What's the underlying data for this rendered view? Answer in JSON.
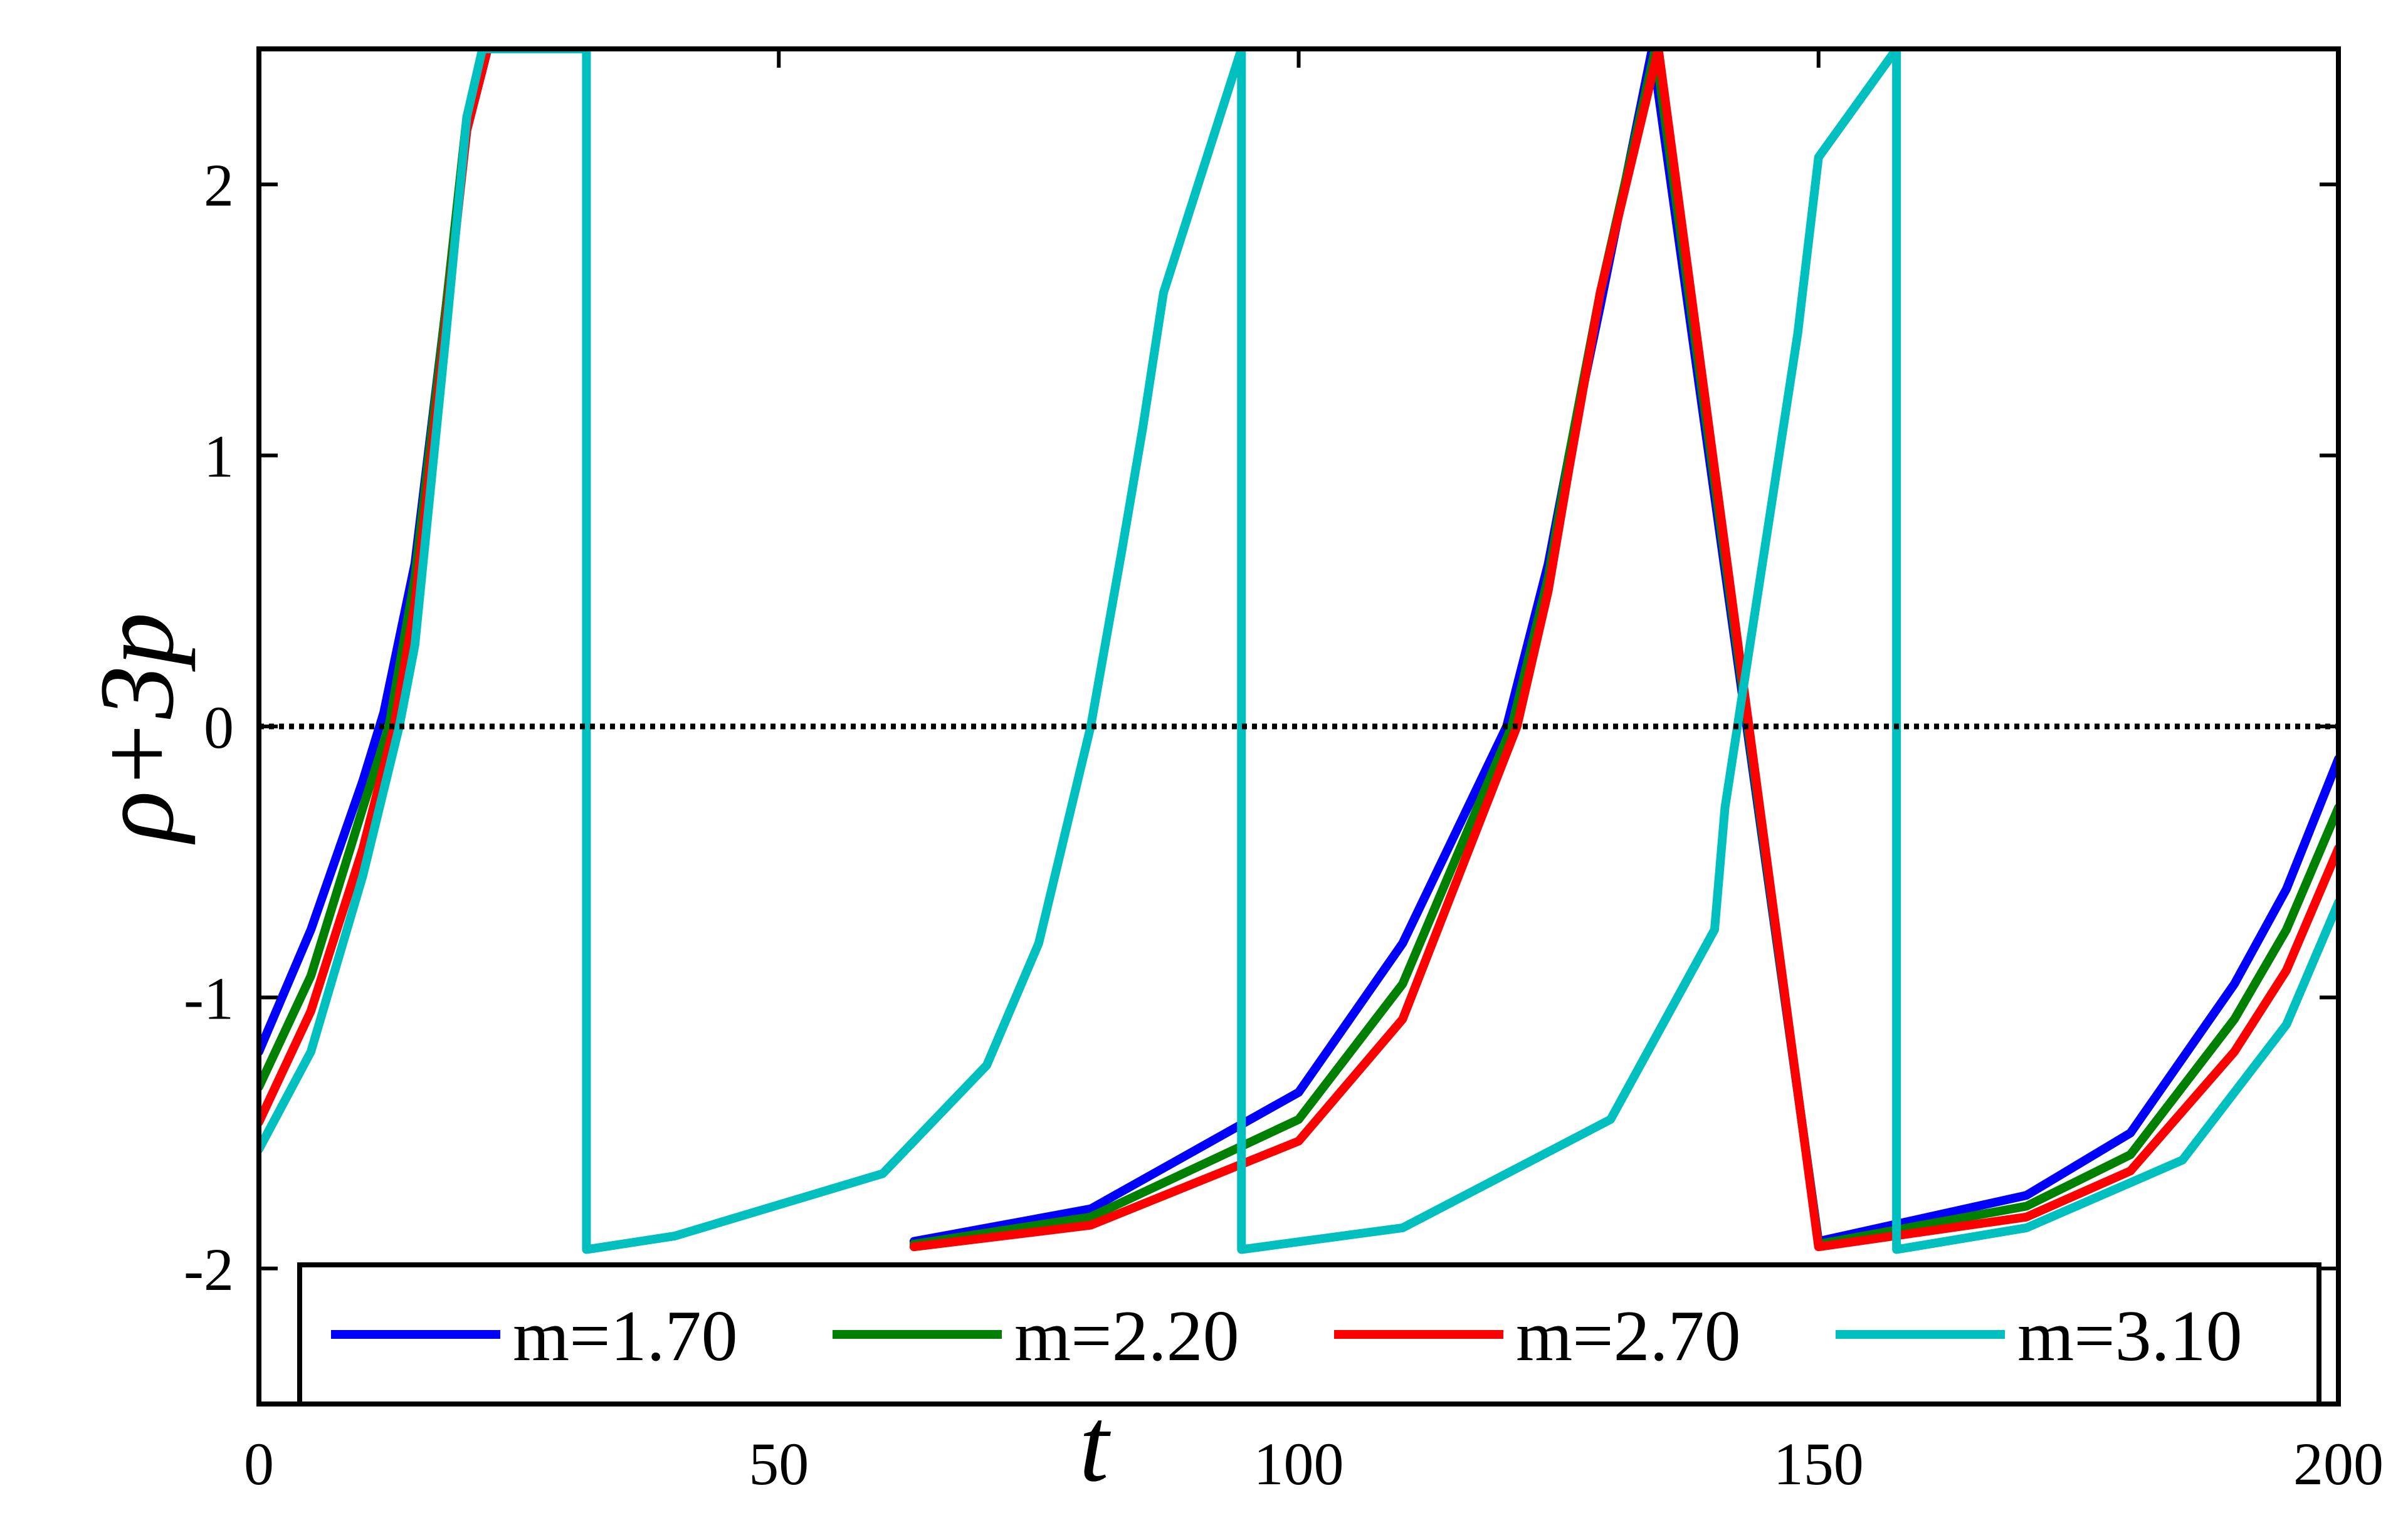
{
  "chart_data": {
    "type": "line",
    "xlabel": "t",
    "ylabel": "ρ+3p",
    "xlim": [
      0,
      200
    ],
    "ylim": [
      -2.5,
      2.5
    ],
    "xticks": [
      0,
      50,
      100,
      150,
      200
    ],
    "xtick_labels": [
      "0",
      "50",
      "100",
      "150",
      "200"
    ],
    "yticks": [
      2,
      1,
      0,
      -1,
      -2
    ],
    "ytick_labels": [
      "2",
      "1",
      "0",
      "-1",
      "-2"
    ],
    "grid": false,
    "legend_position": "bottom",
    "reference_line": {
      "y": 0,
      "style": "dotted",
      "color": "#000000"
    },
    "period": 63,
    "series": [
      {
        "name": "m=1.70",
        "color": "#0000ff",
        "x": [
          0,
          5,
          10,
          12,
          15,
          18,
          20,
          22,
          23,
          63,
          80,
          100,
          110,
          120,
          124,
          126,
          129,
          134,
          150,
          170,
          180,
          190,
          195,
          200
        ],
        "y": [
          -1.2,
          -0.75,
          -0.2,
          0.05,
          0.6,
          1.55,
          2.2,
          2.5,
          null,
          -1.9,
          -1.78,
          -1.35,
          -0.8,
          0.0,
          0.6,
          1.0,
          1.55,
          2.5,
          -1.9,
          -1.73,
          -1.5,
          -0.95,
          -0.6,
          -0.12
        ]
      },
      {
        "name": "m=2.20",
        "color": "#008000",
        "x": [
          0,
          5,
          10,
          12.5,
          15,
          18,
          20,
          22,
          23.2,
          63,
          80,
          100,
          110,
          120.5,
          124,
          126,
          129,
          134.3,
          150,
          170,
          180,
          190,
          195,
          200
        ],
        "y": [
          -1.33,
          -0.92,
          -0.3,
          0.0,
          0.55,
          1.55,
          2.25,
          2.5,
          null,
          -1.91,
          -1.81,
          -1.45,
          -0.95,
          0.0,
          0.55,
          1.0,
          1.6,
          2.5,
          -1.91,
          -1.77,
          -1.58,
          -1.08,
          -0.75,
          -0.3
        ]
      },
      {
        "name": "m=2.70",
        "color": "#ff0000",
        "x": [
          0,
          5,
          10,
          13,
          15,
          18,
          20,
          22,
          23.5,
          63,
          80,
          100,
          110,
          121,
          124,
          126,
          129,
          134.6,
          150,
          170,
          180,
          190,
          195,
          200
        ],
        "y": [
          -1.46,
          -1.05,
          -0.45,
          0.0,
          0.45,
          1.5,
          2.2,
          2.5,
          null,
          -1.92,
          -1.84,
          -1.53,
          -1.08,
          0.0,
          0.5,
          0.95,
          1.6,
          2.5,
          -1.92,
          -1.81,
          -1.64,
          -1.2,
          -0.9,
          -0.45
        ]
      },
      {
        "name": "m=3.10",
        "color": "#00bfbf",
        "x": [
          0,
          5,
          10,
          13.5,
          15,
          18,
          20,
          21.5,
          31.5,
          31.5,
          31.5,
          40,
          60,
          70,
          75,
          80,
          83,
          85,
          87,
          94.5,
          94.5,
          94.5,
          110,
          130,
          140,
          141,
          145,
          148,
          150,
          157.5,
          157.5,
          157.5,
          170,
          185,
          195,
          200
        ],
        "y": [
          -1.56,
          -1.2,
          -0.55,
          0.0,
          0.3,
          1.45,
          2.25,
          2.5,
          2.5,
          2.5,
          -1.93,
          -1.88,
          -1.65,
          -1.25,
          -0.8,
          0.0,
          0.65,
          1.1,
          1.6,
          2.5,
          2.5,
          -1.93,
          -1.85,
          -1.45,
          -0.75,
          -0.3,
          0.7,
          1.45,
          2.1,
          2.5,
          2.5,
          -1.93,
          -1.85,
          -1.6,
          -1.1,
          -0.65
        ]
      }
    ]
  }
}
